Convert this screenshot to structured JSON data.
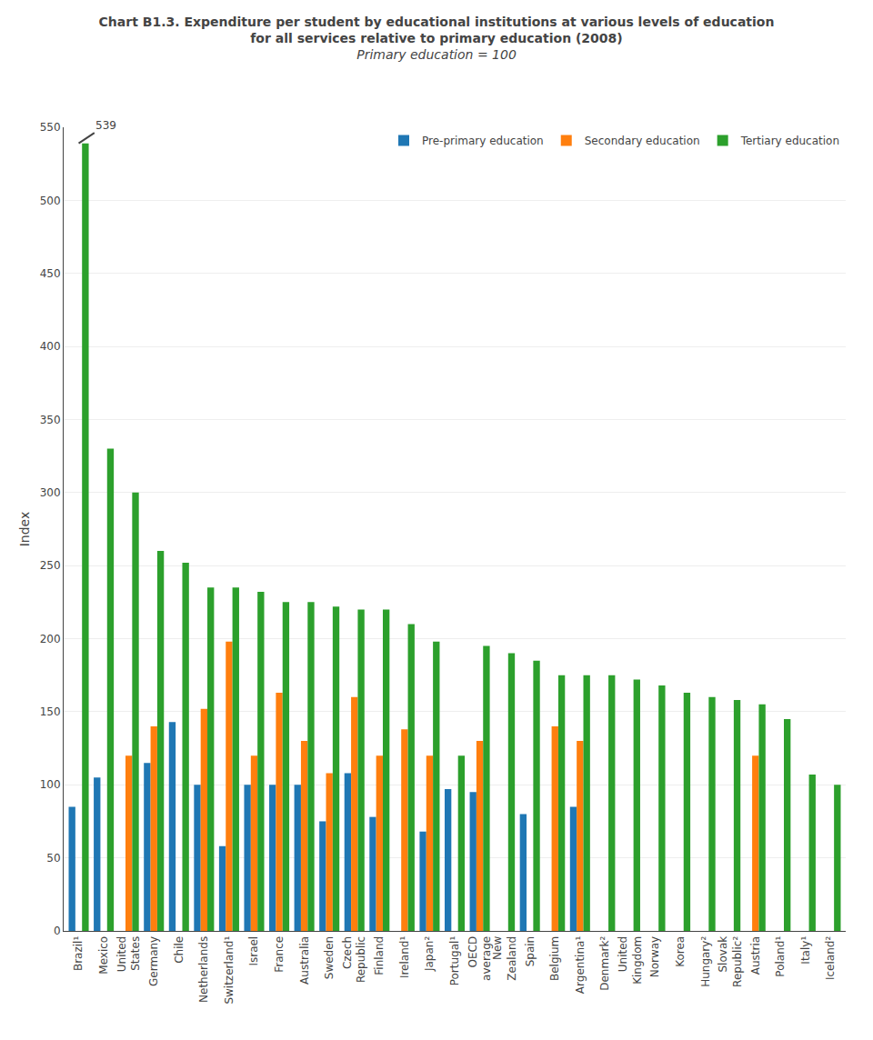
{
  "chart_data": {
    "type": "bar",
    "title": [
      "Chart B1.3. Expenditure per student by educational institutions at various levels of education",
      "for all services relative to primary education (2008)"
    ],
    "subtitle": "Primary education = 100",
    "ylabel": "Index",
    "categories": [
      "Brazil¹",
      "Mexico",
      "United\nStates",
      "Germany",
      "Chile",
      "Netherlands",
      "Switzerland¹",
      "Israel",
      "France",
      "Australia",
      "Sweden",
      "Czech\nRepublic",
      "Finland",
      "Ireland¹",
      "Japan²",
      "Portugal¹",
      "OECD\naverage",
      "New\nZealand",
      "Spain",
      "Belgium",
      "Argentina¹",
      "Denmark²",
      "United\nKingdom",
      "Norway",
      "Korea",
      "Hungary²",
      "Slovak\nRepublic²",
      "Austria",
      "Poland¹",
      "Italy¹",
      "Iceland²"
    ],
    "series": [
      {
        "name": "Pre-primary education",
        "values": [
          85,
          105,
          null,
          115,
          143,
          100,
          58,
          100,
          100,
          100,
          75,
          108,
          78,
          null,
          68,
          97,
          95,
          null,
          80,
          null,
          85,
          null,
          null,
          null,
          null,
          null,
          null,
          null,
          null,
          null,
          null
        ]
      },
      {
        "name": "Secondary education",
        "values": [
          null,
          null,
          120,
          140,
          null,
          152,
          198,
          120,
          163,
          130,
          108,
          160,
          120,
          138,
          120,
          null,
          130,
          null,
          null,
          140,
          130,
          null,
          null,
          null,
          null,
          null,
          null,
          120,
          null,
          null,
          null
        ]
      },
      {
        "name": "Tertiary education",
        "values": [
          539,
          330,
          300,
          260,
          252,
          235,
          235,
          232,
          225,
          225,
          222,
          220,
          220,
          210,
          198,
          120,
          195,
          190,
          185,
          175,
          175,
          175,
          172,
          168,
          163,
          160,
          158,
          155,
          145,
          107,
          100
        ]
      }
    ],
    "annotations": [
      {
        "category": "Brazil¹",
        "y": 539,
        "text": "539"
      }
    ],
    "ylim": [
      0,
      550
    ],
    "yticks": [
      0,
      50,
      100,
      150,
      200,
      250,
      300,
      350,
      400,
      450,
      500,
      550
    ],
    "grid": true,
    "legend": "upper right"
  }
}
